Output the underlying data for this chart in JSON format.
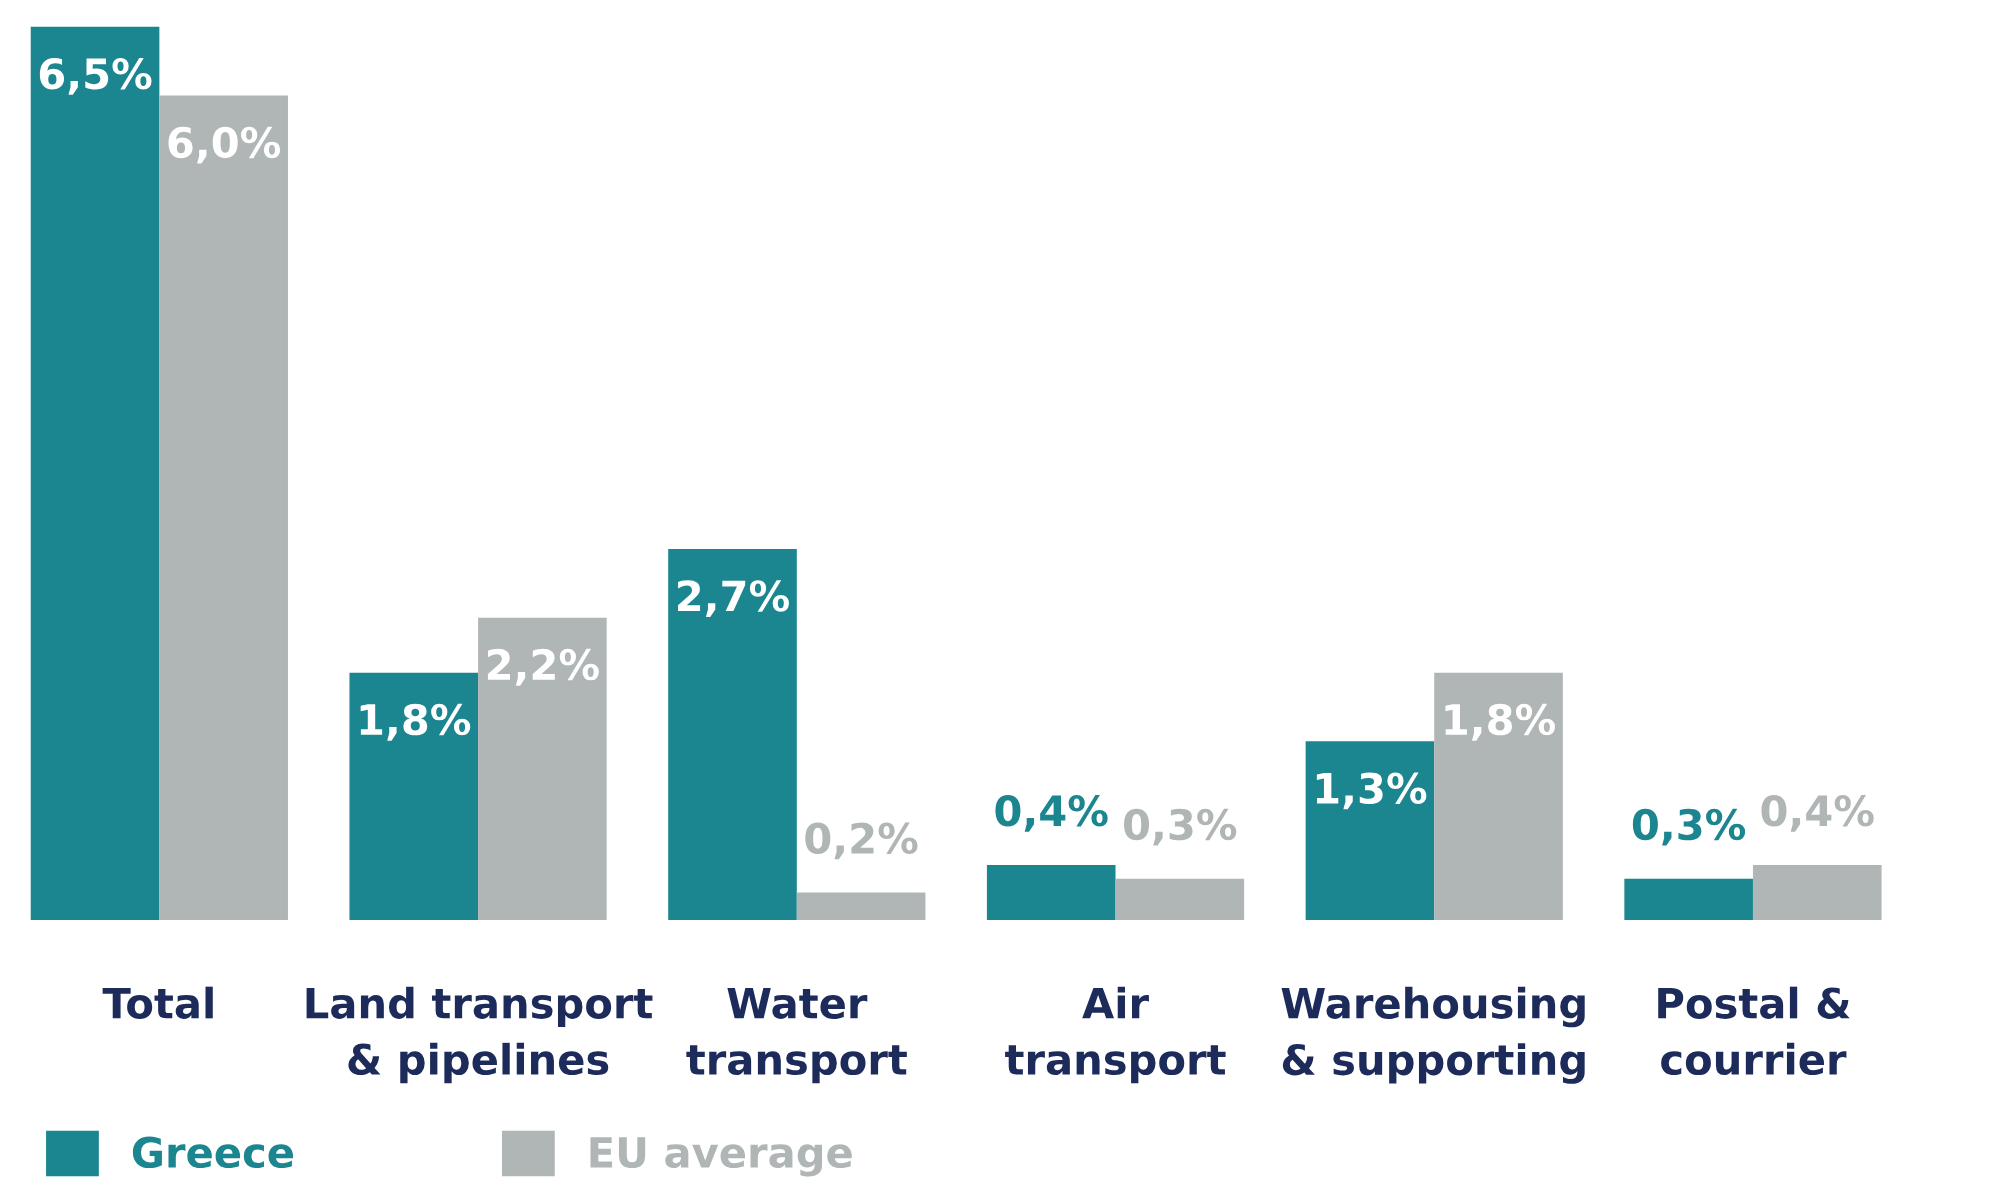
{
  "chart_data": {
    "type": "bar",
    "categories": [
      "Total",
      "Land transport\n& pipelines",
      "Water\ntransport",
      "Air\ntransport",
      "Warehousing\n& supporting",
      "Postal &\ncourrier"
    ],
    "series": [
      {
        "name": "Greece",
        "color": "#1b8590",
        "values": [
          6.5,
          1.8,
          2.7,
          0.4,
          1.3,
          0.3
        ],
        "value_labels": [
          "6,5%",
          "1,8%",
          "2,7%",
          "0,4%",
          "1,3%",
          "0,3%"
        ]
      },
      {
        "name": "EU average",
        "color": "#b0b5b5",
        "values": [
          6.0,
          2.2,
          0.2,
          0.3,
          1.8,
          0.4
        ],
        "value_labels": [
          "6,0%",
          "2,2%",
          "0,2%",
          "0,3%",
          "1,8%",
          "0,4%"
        ]
      }
    ],
    "legend": "bottom left",
    "grid": false
  }
}
